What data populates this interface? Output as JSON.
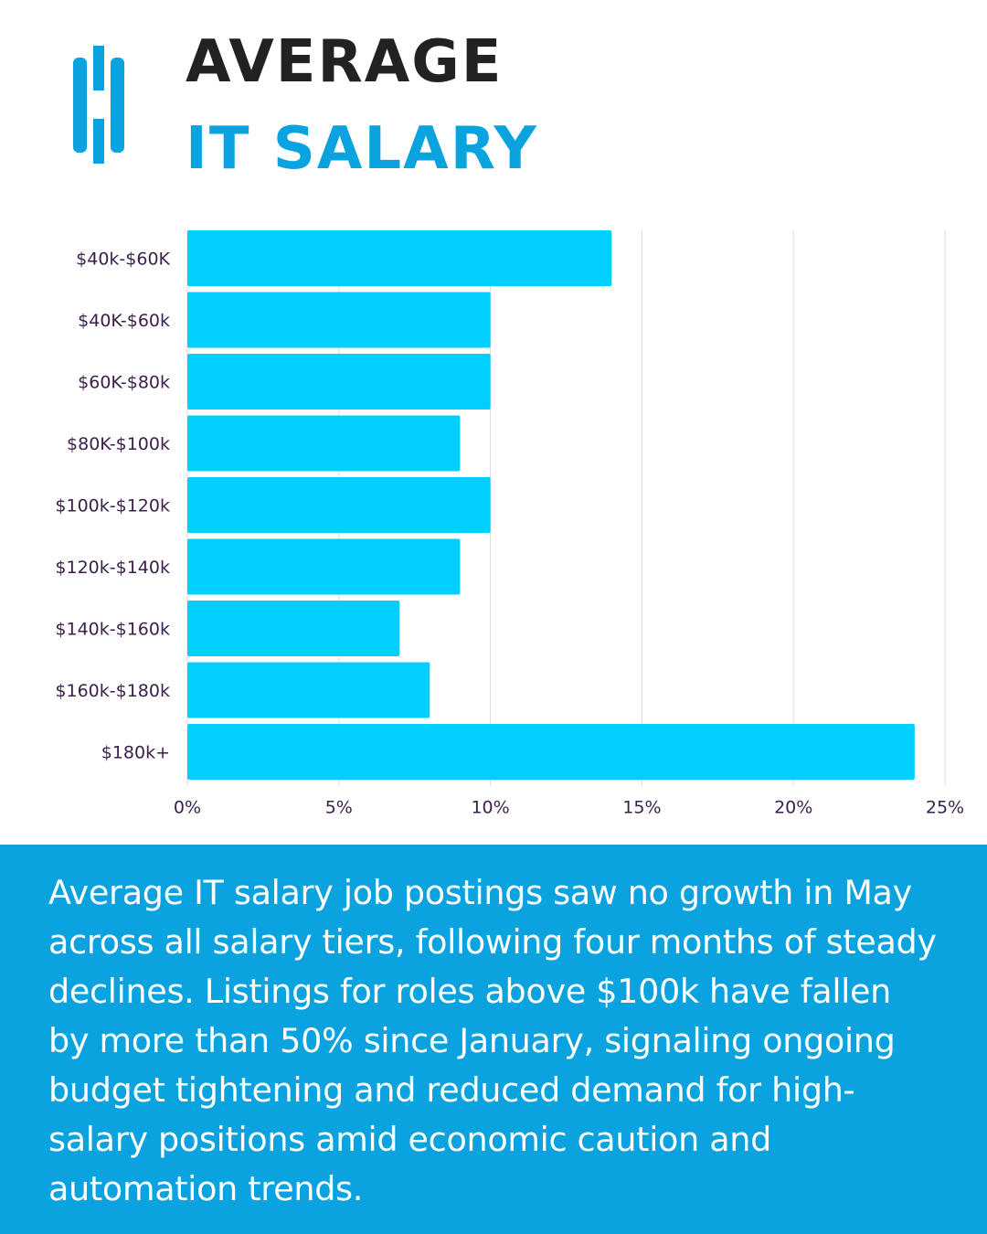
{
  "header": {
    "title_line1": "AVERAGE",
    "title_line2": "IT SALARY"
  },
  "colors": {
    "brand": "#0aa3df",
    "bar": "#00cfff",
    "banner": "#0aa3df",
    "grid": "#ddd9e4"
  },
  "chart_data": {
    "type": "bar",
    "orientation": "horizontal",
    "title": "AVERAGE IT SALARY",
    "categories": [
      "$40k-$60K",
      "$40K-$60k",
      "$60K-$80k",
      "$80K-$100k",
      "$100k-$120k",
      "$120k-$140k",
      "$140k-$160k",
      "$160k-$180k",
      "$180k+"
    ],
    "values": [
      14,
      10,
      10,
      9,
      10,
      9,
      7,
      8,
      24
    ],
    "xlim": [
      0,
      25
    ],
    "xticks": [
      "0%",
      "5%",
      "10%",
      "15%",
      "20%",
      "25%"
    ],
    "xtick_values": [
      0,
      5,
      10,
      15,
      20,
      25
    ],
    "grid": true,
    "xlabel": "",
    "ylabel": ""
  },
  "description": "Average IT salary job postings saw no growth in May across all salary tiers, following four months of steady declines. Listings for roles above $100k have fallen by more than 50% since January, signaling ongoing budget tightening and reduced demand for high-salary positions amid economic caution and automation trends."
}
